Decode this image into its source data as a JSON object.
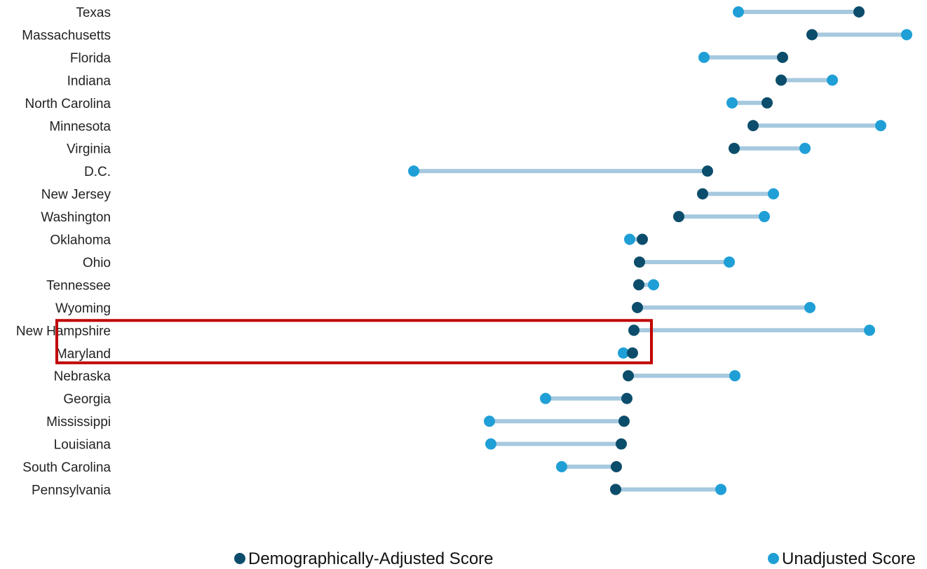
{
  "chart_data": {
    "type": "dumbbell",
    "title": "",
    "xlabel": "",
    "ylabel": "",
    "grid": false,
    "legend_position": "bottom",
    "colors": {
      "adjusted": "#0c4d6c",
      "unadjusted": "#1f9fd6",
      "connector": "#a6c9df",
      "highlight": "#c00000"
    },
    "series": [
      {
        "name": "Demographically-Adjusted Score",
        "key": "adjusted"
      },
      {
        "name": "Unadjusted Score",
        "key": "unadjusted"
      }
    ],
    "categories": [
      "Texas",
      "Massachusetts",
      "Florida",
      "Indiana",
      "North Carolina",
      "Minnesota",
      "Virginia",
      "D.C.",
      "New Jersey",
      "Washington",
      "Oklahoma",
      "Ohio",
      "Tennessee",
      "Wyoming",
      "New Hampshire",
      "Maryland",
      "Nebraska",
      "Georgia",
      "Mississippi",
      "Louisiana",
      "South Carolina",
      "Pennsylvania"
    ],
    "adjusted": [
      1225,
      1158,
      1116,
      1114,
      1094,
      1074,
      1047,
      1009,
      1002,
      968,
      916,
      912,
      911,
      909,
      904,
      902,
      896,
      894,
      890,
      886,
      879,
      878
    ],
    "unadjusted": [
      1053,
      1293,
      1004,
      1187,
      1044,
      1256,
      1148,
      590,
      1103,
      1090,
      898,
      1040,
      932,
      1155,
      1240,
      889,
      1048,
      778,
      698,
      700,
      801,
      1028
    ],
    "highlighted": [
      "New Hampshire",
      "Maryland"
    ]
  }
}
